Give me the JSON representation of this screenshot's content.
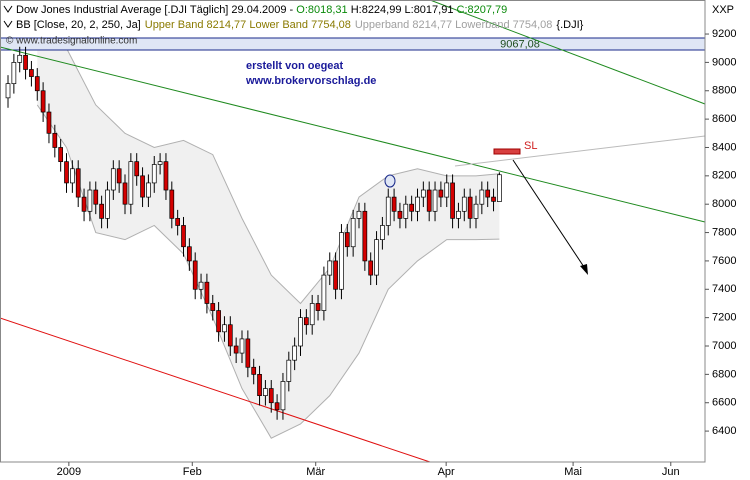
{
  "chart_data": {
    "type": "candlestick",
    "title": "Dow Jones Industrial Average [.DJI  Täglich] 29.04.2009 - ",
    "title_open": "O:8018,31",
    "title_high_low": " H:8224,99 L:8017,91 ",
    "title_close": "C:8207,79",
    "indicator": "BB [Close, 20, 2, 250, Ja]",
    "indicator_bands": "Upper Band 8214,77 Lower Band 7754,08",
    "indicator_bands_2": "Upperband 8214,77 Lowerband 7754,08",
    "indicator_symbol": "{.DJI}",
    "corner_label": "XXP",
    "watermark": "© www.tradesignalonline.com",
    "author": "erstellt von oegeat",
    "website": "www.brokervorschlag.de",
    "level_label": "9067,08",
    "stop_label": "SL",
    "up_color": "#ffffff",
    "down_color": "#d40000",
    "band_color": "#f0f0f0",
    "candles": {
      "open": [
        8750,
        8850,
        9000,
        9050,
        8950,
        8900,
        8800,
        8650,
        8500,
        8400,
        8300,
        8150,
        8250,
        8050,
        7950,
        8100,
        8000,
        7900,
        8100,
        8250,
        8150,
        8000,
        8300,
        8200,
        8050,
        8150,
        8280,
        8300,
        8100,
        7900,
        7850,
        7700,
        7600,
        7400,
        7450,
        7300,
        7250,
        7100,
        7150,
        7000,
        6950,
        7050,
        6850,
        6800,
        6650,
        6700,
        6600,
        6550,
        6750,
        6900,
        7000,
        7200,
        7150,
        7300,
        7250,
        7500,
        7600,
        7400,
        7800,
        7700,
        7900,
        7950,
        7600,
        7500,
        7750,
        7850,
        8050,
        7950,
        7900,
        8000,
        7950,
        8050,
        8100,
        7950,
        8100,
        8050,
        8150,
        7900,
        7950,
        8050,
        7900,
        8000,
        8100,
        8050,
        8018.31
      ],
      "high": [
        8910,
        9060,
        9110,
        9110,
        9010,
        8960,
        8860,
        8710,
        8560,
        8460,
        8360,
        8310,
        8310,
        8110,
        8160,
        8160,
        8060,
        8160,
        8310,
        8310,
        8210,
        8360,
        8360,
        8260,
        8210,
        8340,
        8360,
        8360,
        8160,
        7960,
        7910,
        7760,
        7660,
        7510,
        7510,
        7360,
        7310,
        7210,
        7210,
        7060,
        7110,
        7110,
        6910,
        6860,
        6760,
        6760,
        6660,
        6810,
        6960,
        7060,
        7260,
        7260,
        7360,
        7360,
        7560,
        7660,
        7660,
        7860,
        7860,
        7960,
        8010,
        8010,
        7660,
        7810,
        7910,
        8110,
        8110,
        8010,
        8060,
        8060,
        8110,
        8160,
        8160,
        8160,
        8160,
        8210,
        8210,
        8010,
        8110,
        8110,
        8060,
        8160,
        8160,
        8110,
        8224.99
      ],
      "low": [
        8680,
        8780,
        8930,
        8880,
        8830,
        8730,
        8580,
        8430,
        8330,
        8230,
        8080,
        8080,
        7980,
        7880,
        7880,
        7930,
        7830,
        7830,
        8030,
        8080,
        7930,
        7930,
        8130,
        7980,
        7980,
        8080,
        8210,
        8030,
        7830,
        7780,
        7630,
        7530,
        7330,
        7330,
        7230,
        7180,
        7030,
        7030,
        6930,
        6880,
        6880,
        6780,
        6730,
        6580,
        6580,
        6530,
        6480,
        6480,
        6680,
        6830,
        6930,
        7080,
        7080,
        7180,
        7180,
        7430,
        7330,
        7330,
        7630,
        7630,
        7830,
        7530,
        7430,
        7430,
        7680,
        7780,
        7880,
        7830,
        7830,
        7880,
        7880,
        7980,
        7880,
        7880,
        7980,
        7980,
        7830,
        7830,
        7880,
        7830,
        7830,
        7930,
        7980,
        7950,
        8017.91
      ],
      "close": [
        8850,
        9000,
        9050,
        8950,
        8900,
        8800,
        8650,
        8500,
        8400,
        8300,
        8150,
        8250,
        8050,
        7950,
        8100,
        8000,
        7900,
        8100,
        8250,
        8150,
        8000,
        8300,
        8200,
        8050,
        8150,
        8280,
        8300,
        8100,
        7900,
        7850,
        7700,
        7600,
        7400,
        7450,
        7300,
        7250,
        7100,
        7150,
        7000,
        6950,
        7050,
        6850,
        6800,
        6650,
        6700,
        6600,
        6550,
        6750,
        6900,
        7000,
        7200,
        7150,
        7300,
        7250,
        7500,
        7600,
        7400,
        7800,
        7700,
        7900,
        7950,
        7600,
        7500,
        7750,
        7850,
        8050,
        7950,
        7900,
        8000,
        7950,
        8050,
        8100,
        7950,
        8100,
        8050,
        8150,
        7900,
        7950,
        8050,
        7900,
        8000,
        8100,
        8050,
        8020,
        8207.79
      ]
    },
    "band": {
      "x": [
        5,
        10,
        15,
        20,
        25,
        30,
        35,
        40,
        45,
        50,
        55,
        60,
        65,
        70,
        75,
        80,
        84
      ],
      "upper": [
        9100,
        9100,
        8700,
        8500,
        8400,
        8450,
        8350,
        7900,
        7500,
        7300,
        7550,
        8050,
        8200,
        8250,
        8200,
        8200,
        8214.77
      ],
      "lower": [
        8700,
        8400,
        7800,
        7750,
        7850,
        7650,
        7200,
        6700,
        6350,
        6450,
        6650,
        6950,
        7400,
        7600,
        7750,
        7750,
        7754.08
      ]
    },
    "xlim": [
      -1.37,
      119.15
    ],
    "xticks": [
      {
        "value": 10.4,
        "label": "2009"
      },
      {
        "value": 31.5,
        "label": "Feb"
      },
      {
        "value": 52.6,
        "label": "Mär"
      },
      {
        "value": 74.9,
        "label": "Apr"
      },
      {
        "value": 96.6,
        "label": "Mai"
      },
      {
        "value": 113.3,
        "label": "Jun"
      }
    ],
    "ylim": [
      6182,
      9440
    ],
    "yticks": [
      6400,
      6600,
      6800,
      7000,
      7200,
      7400,
      7600,
      7800,
      8000,
      8200,
      8400,
      8600,
      8800,
      9000,
      9200
    ]
  }
}
